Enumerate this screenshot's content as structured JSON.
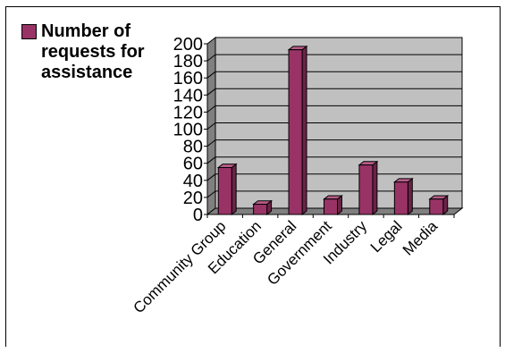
{
  "chart_data": {
    "type": "bar",
    "style": "3d-column",
    "categories": [
      "Community Group",
      "Education",
      "General",
      "Government",
      "Industry",
      "Legal",
      "Media"
    ],
    "series": [
      {
        "name": "Number of requests for assistance",
        "values": [
          55,
          12,
          193,
          18,
          58,
          38,
          18
        ]
      }
    ],
    "yticks": [
      "0",
      "20",
      "40",
      "60",
      "80",
      "100",
      "120",
      "140",
      "160",
      "180",
      "200"
    ],
    "ylim": [
      0,
      200
    ],
    "grid": true,
    "legend": "top-left",
    "colors": {
      "bar_front": "#993366",
      "bar_side": "#6b2347",
      "bar_top": "#b85c89",
      "wall": "#c0c0c0",
      "floor": "#808080",
      "gridline": "#000000"
    }
  }
}
